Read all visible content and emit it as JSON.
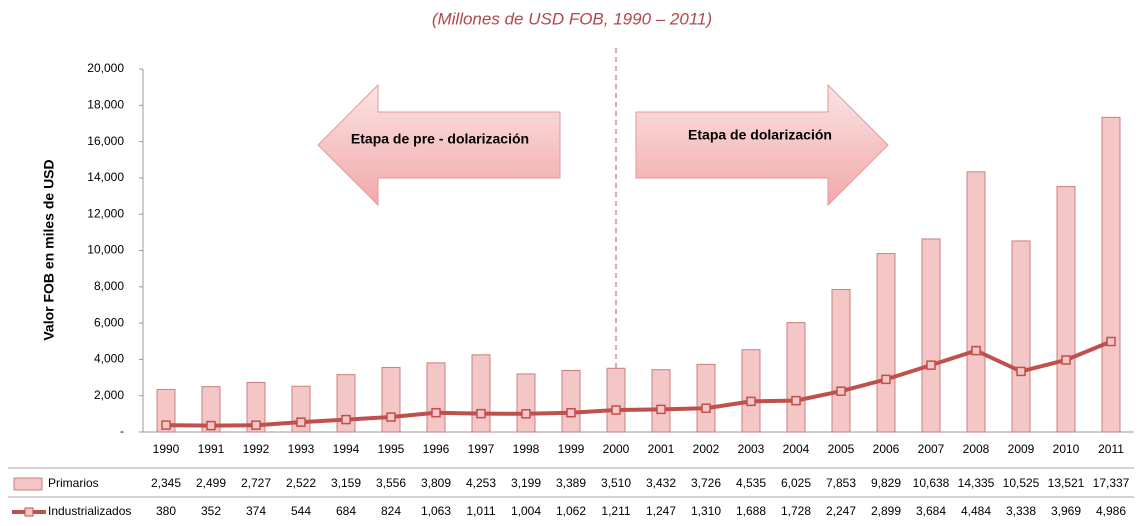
{
  "chart_data": {
    "type": "bar",
    "title": "(Millones de USD FOB, 1990 – 2011)",
    "y_label": "Valor FOB en miles de USD",
    "annotations": [
      "Etapa de pre - dolarización",
      "Etapa de dolarización"
    ],
    "categories": [
      "1990",
      "1991",
      "1992",
      "1993",
      "1994",
      "1995",
      "1996",
      "1997",
      "1998",
      "1999",
      "2000",
      "2001",
      "2002",
      "2003",
      "2004",
      "2005",
      "2006",
      "2007",
      "2008",
      "2009",
      "2010",
      "2011"
    ],
    "series": [
      {
        "name": "Primarios",
        "type": "bar",
        "color": "#f4c6c6",
        "values": [
          2345,
          2499,
          2727,
          2522,
          3159,
          3556,
          3809,
          4253,
          3199,
          3389,
          3510,
          3432,
          3726,
          4535,
          6025,
          7853,
          9829,
          10638,
          14335,
          10525,
          13521,
          17337
        ],
        "value_labels": [
          "2,345",
          "2,499",
          "2,727",
          "2,522",
          "3,159",
          "3,556",
          "3,809",
          "4,253",
          "3,199",
          "3,389",
          "3,510",
          "3,432",
          "3,726",
          "4,535",
          "6,025",
          "7,853",
          "9,829",
          "10,638",
          "14,335",
          "10,525",
          "13,521",
          "17,337"
        ]
      },
      {
        "name": "Industrializados",
        "type": "line",
        "color": "#c0504d",
        "values": [
          380,
          352,
          374,
          544,
          684,
          824,
          1063,
          1011,
          1004,
          1062,
          1211,
          1247,
          1310,
          1688,
          1728,
          2247,
          2899,
          3684,
          4484,
          3338,
          3969,
          4986
        ],
        "value_labels": [
          "380",
          "352",
          "374",
          "544",
          "684",
          "824",
          "1,063",
          "1,011",
          "1,004",
          "1,062",
          "1,211",
          "1,247",
          "1,310",
          "1,688",
          "1,728",
          "2,247",
          "2,899",
          "3,684",
          "4,484",
          "3,338",
          "3,969",
          "4,986"
        ]
      }
    ],
    "ylim": [
      0,
      20000
    ],
    "yticks": [
      {
        "value": 0,
        "label": "-"
      },
      {
        "value": 2000,
        "label": "2,000"
      },
      {
        "value": 4000,
        "label": "4,000"
      },
      {
        "value": 6000,
        "label": "6,000"
      },
      {
        "value": 8000,
        "label": "8,000"
      },
      {
        "value": 10000,
        "label": "10,000"
      },
      {
        "value": 12000,
        "label": "12,000"
      },
      {
        "value": 14000,
        "label": "14,000"
      },
      {
        "value": 16000,
        "label": "16,000"
      },
      {
        "value": 18000,
        "label": "18,000"
      },
      {
        "value": 20000,
        "label": "20,000"
      }
    ],
    "grid": false
  }
}
